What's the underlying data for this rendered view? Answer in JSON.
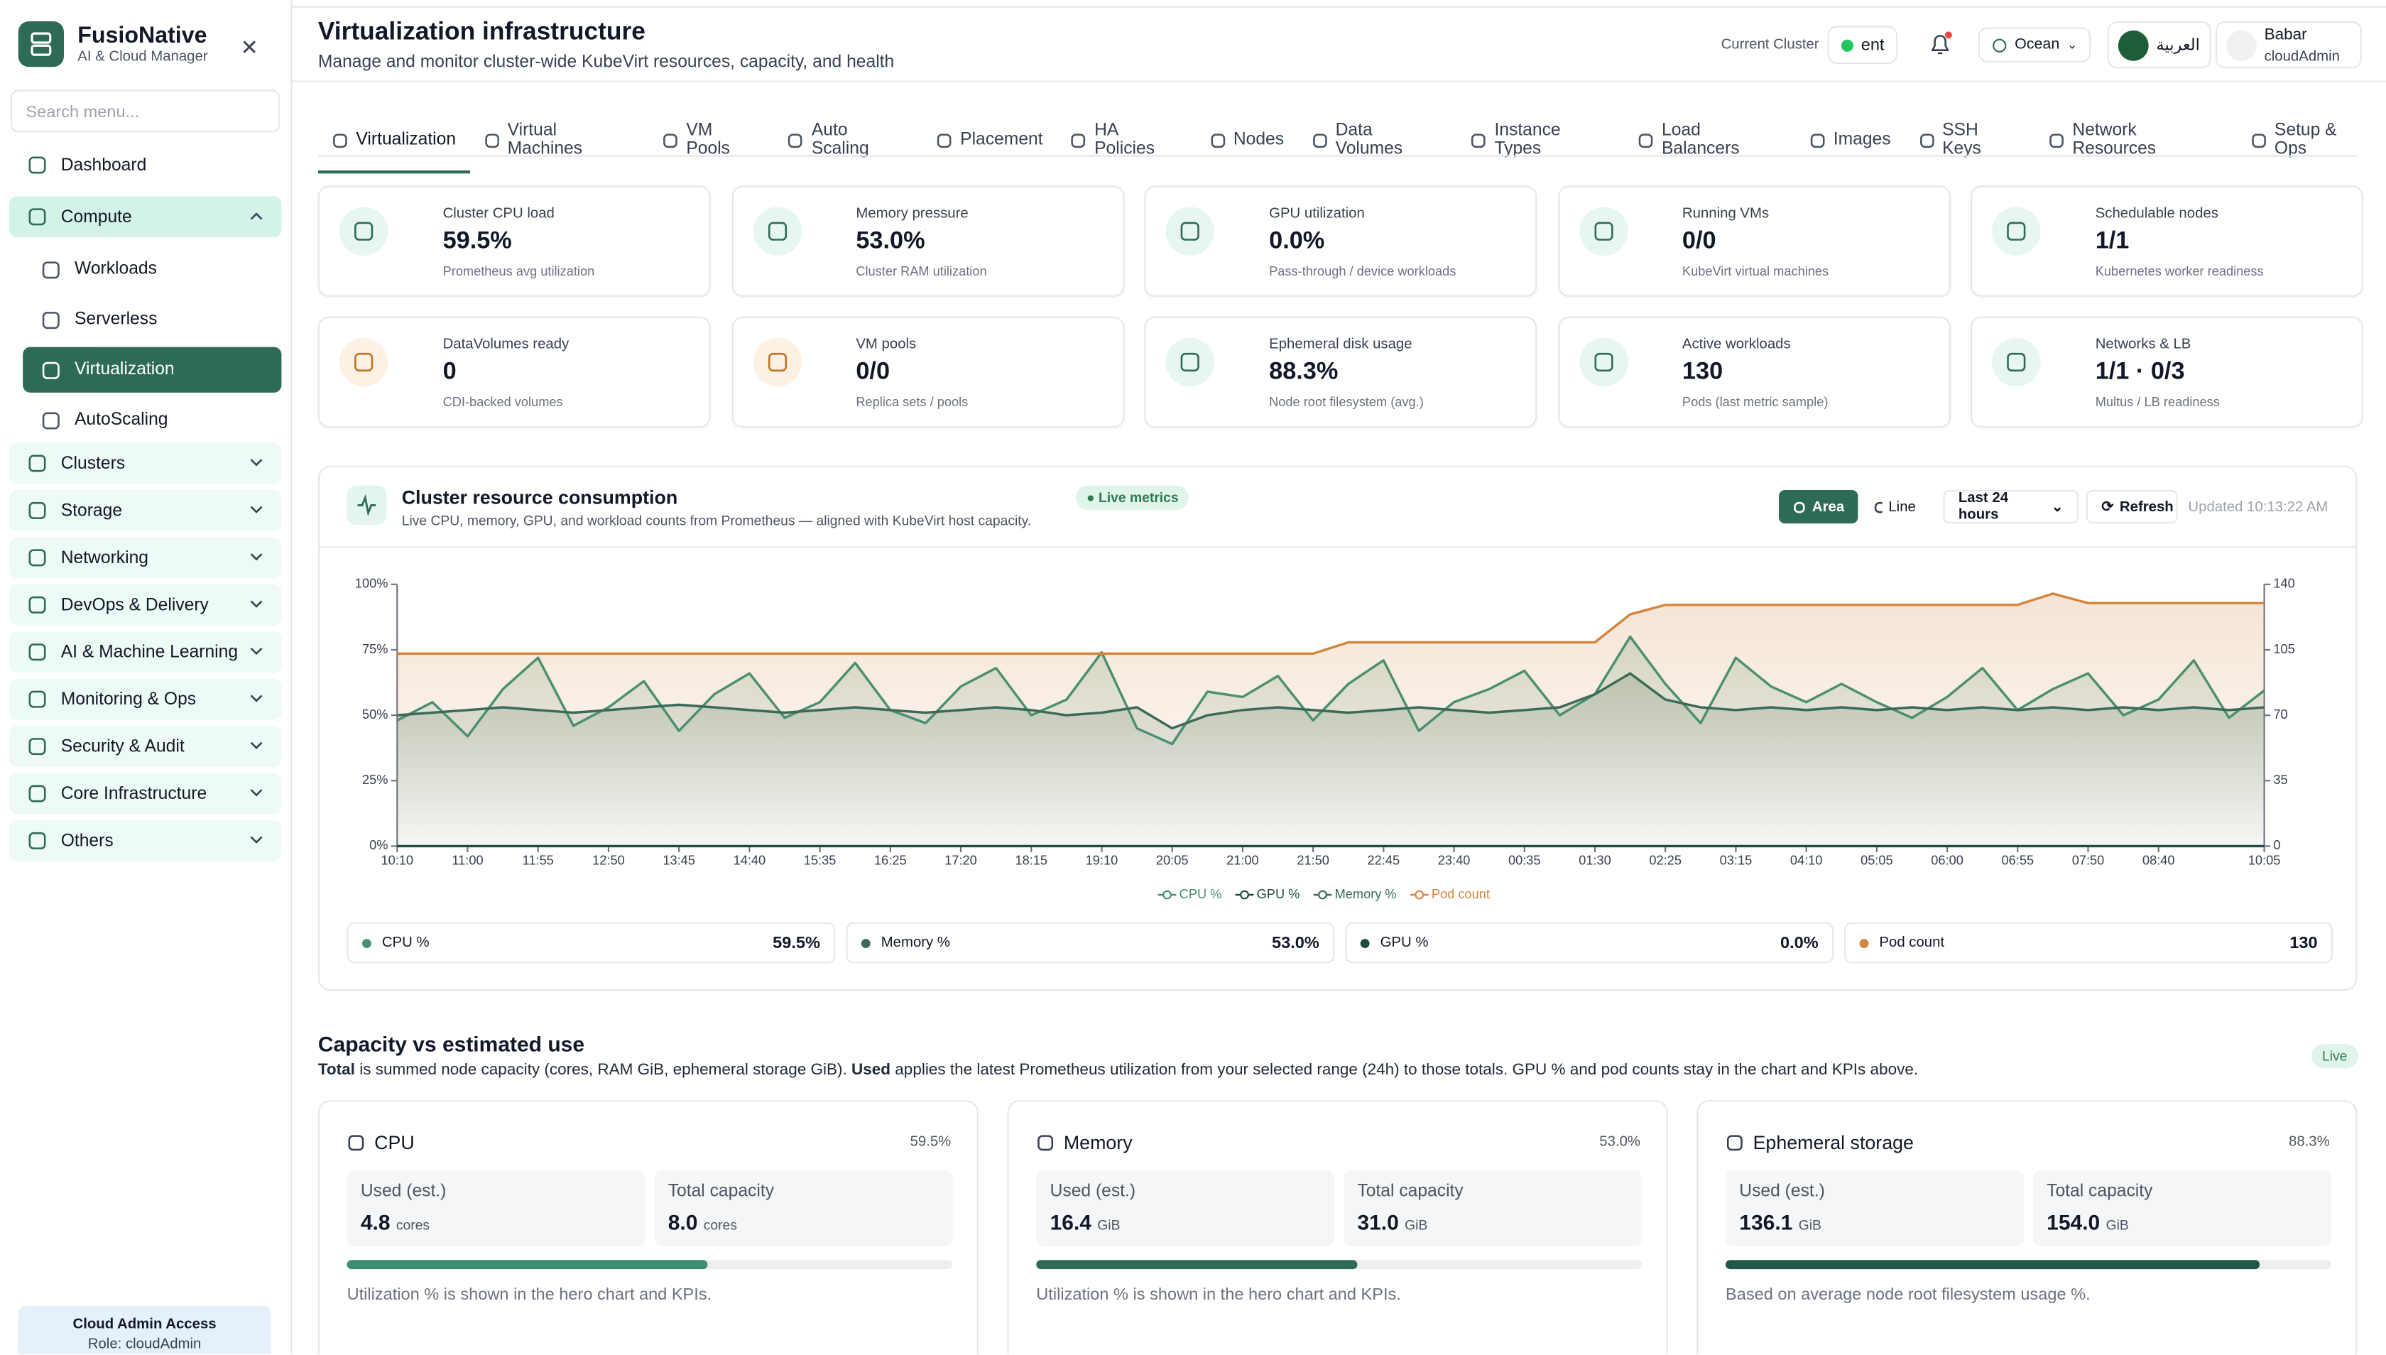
{
  "sidebar": {
    "brand": "FusioNative",
    "tagline": "AI & Cloud Manager",
    "search_placeholder": "Search menu...",
    "nav": [
      {
        "label": "Dashboard"
      },
      {
        "label": "Compute",
        "open": true,
        "children": [
          {
            "label": "Workloads"
          },
          {
            "label": "Serverless"
          },
          {
            "label": "Virtualization",
            "active": true
          },
          {
            "label": "AutoScaling"
          }
        ]
      },
      {
        "label": "Clusters"
      },
      {
        "label": "Storage"
      },
      {
        "label": "Networking"
      },
      {
        "label": "DevOps & Delivery"
      },
      {
        "label": "AI & Machine Learning"
      },
      {
        "label": "Monitoring & Ops"
      },
      {
        "label": "Security & Audit"
      },
      {
        "label": "Core Infrastructure"
      },
      {
        "label": "Others"
      }
    ],
    "footer": {
      "title": "Cloud Admin Access",
      "role": "Role: cloudAdmin"
    }
  },
  "header": {
    "title": "Virtualization infrastructure",
    "subtitle": "Manage and monitor cluster-wide KubeVirt resources, capacity, and health",
    "cluster_label": "Current Cluster",
    "cluster": "ent",
    "theme": "Ocean",
    "language": "العربية",
    "user_name": "Babar",
    "user_role": "cloudAdmin"
  },
  "tabs": [
    {
      "label": "Virtualization",
      "active": true
    },
    {
      "label": "Virtual Machines"
    },
    {
      "label": "VM Pools"
    },
    {
      "label": "Auto Scaling"
    },
    {
      "label": "Placement"
    },
    {
      "label": "HA Policies"
    },
    {
      "label": "Nodes"
    },
    {
      "label": "Data Volumes"
    },
    {
      "label": "Instance Types"
    },
    {
      "label": "Load Balancers"
    },
    {
      "label": "Images"
    },
    {
      "label": "SSH Keys"
    },
    {
      "label": "Network Resources"
    },
    {
      "label": "Setup & Ops"
    }
  ],
  "kpis": [
    {
      "label": "Cluster CPU load",
      "value": "59.5%",
      "note": "Prometheus avg utilization"
    },
    {
      "label": "Memory pressure",
      "value": "53.0%",
      "note": "Cluster RAM utilization"
    },
    {
      "label": "GPU utilization",
      "value": "0.0%",
      "note": "Pass-through / device workloads"
    },
    {
      "label": "Running VMs",
      "value": "0/0",
      "note": "KubeVirt virtual machines"
    },
    {
      "label": "Schedulable nodes",
      "value": "1/1",
      "note": "Kubernetes worker readiness"
    },
    {
      "label": "DataVolumes ready",
      "value": "0",
      "note": "CDI-backed volumes"
    },
    {
      "label": "VM pools",
      "value": "0/0",
      "note": "Replica sets / pools"
    },
    {
      "label": "Ephemeral disk usage",
      "value": "88.3%",
      "note": "Node root filesystem (avg.)"
    },
    {
      "label": "Active workloads",
      "value": "130",
      "note": "Pods (last metric sample)"
    },
    {
      "label": "Networks & LB",
      "value": "1/1 · 0/3",
      "note": "Multus / LB readiness"
    }
  ],
  "chart_panel": {
    "badge": "Live metrics",
    "modes": [
      {
        "label": "Area",
        "active": true
      },
      {
        "label": "Line"
      }
    ],
    "range": "Last 24 hours",
    "refresh": "Refresh",
    "updated": "Updated 10:13:22 AM",
    "stats": [
      {
        "name": "CPU %",
        "value": "59.5%"
      },
      {
        "name": "Memory %",
        "value": "53.0%"
      },
      {
        "name": "GPU %",
        "value": "0.0%"
      },
      {
        "name": "Pod count",
        "value": "130"
      }
    ]
  },
  "chart_data": {
    "type": "line",
    "title": "Cluster resource consumption",
    "subtitle": "Live CPU, memory, GPU, and workload counts from Prometheus — aligned with KubeVirt host capacity.",
    "area": true,
    "grid": false,
    "categories": [
      "10:10",
      null,
      "11:00",
      null,
      "11:55",
      null,
      "12:50",
      null,
      "13:45",
      null,
      "14:40",
      null,
      "15:35",
      null,
      "16:25",
      null,
      "17:20",
      null,
      "18:15",
      null,
      "19:10",
      null,
      "20:05",
      null,
      "21:00",
      null,
      "21:50",
      null,
      "22:45",
      null,
      "23:40",
      null,
      "00:35",
      null,
      "01:30",
      null,
      "02:25",
      null,
      "03:15",
      null,
      "04:10",
      null,
      "05:05",
      null,
      "06:00",
      null,
      "06:55",
      null,
      "07:50",
      null,
      "08:40",
      null,
      null,
      "10:05"
    ],
    "ylim": [
      0,
      100
    ],
    "yticks": [
      {
        "value": 0,
        "label": "0%"
      },
      {
        "value": 25,
        "label": "25%"
      },
      {
        "value": 50,
        "label": "50%"
      },
      {
        "value": 75,
        "label": "75%"
      },
      {
        "value": 100,
        "label": "100%"
      }
    ],
    "y2lim": [
      0,
      140
    ],
    "y2ticks": [
      0,
      35,
      70,
      105,
      140
    ],
    "series": [
      {
        "name": "CPU %",
        "color": "#4a8f6f",
        "values": [
          48,
          55,
          42,
          60,
          72,
          46,
          53,
          63,
          44,
          58,
          66,
          49,
          55,
          70,
          52,
          47,
          61,
          68,
          50,
          56,
          74,
          45,
          39,
          59,
          57,
          65,
          48,
          62,
          71,
          44,
          55,
          60,
          67,
          50,
          58,
          80,
          62,
          47,
          72,
          61,
          55,
          62,
          55,
          49,
          57,
          68,
          52,
          60,
          66,
          50,
          56,
          71,
          49,
          59.5
        ]
      },
      {
        "name": "GPU %",
        "color": "#1f4d3d",
        "values": [
          0,
          0,
          0,
          0,
          0,
          0,
          0,
          0,
          0,
          0,
          0,
          0,
          0,
          0,
          0,
          0,
          0,
          0,
          0,
          0,
          0,
          0,
          0,
          0,
          0,
          0,
          0,
          0,
          0,
          0,
          0,
          0,
          0,
          0,
          0,
          0,
          0,
          0,
          0,
          0,
          0,
          0,
          0,
          0,
          0,
          0,
          0,
          0,
          0,
          0,
          0,
          0,
          0,
          0
        ]
      },
      {
        "name": "Memory %",
        "color": "#3a6b56",
        "values": [
          50,
          51,
          52,
          53,
          52,
          51,
          52,
          53,
          54,
          53,
          52,
          51,
          52,
          53,
          52,
          51,
          52,
          53,
          52,
          50,
          51,
          53,
          45,
          50,
          52,
          53,
          52,
          51,
          52,
          53,
          52,
          51,
          52,
          53,
          58,
          66,
          56,
          53,
          52,
          53,
          52,
          53,
          52,
          53,
          52,
          53,
          52,
          53,
          52,
          53,
          52,
          53,
          52,
          53
        ]
      },
      {
        "name": "Pod count",
        "color": "#d4843e",
        "axis": "y2",
        "values": [
          103,
          103,
          103,
          103,
          103,
          103,
          103,
          103,
          103,
          103,
          103,
          103,
          103,
          103,
          103,
          103,
          103,
          103,
          103,
          103,
          103,
          103,
          103,
          103,
          103,
          103,
          103,
          109,
          109,
          109,
          109,
          109,
          109,
          109,
          109,
          124,
          129,
          129,
          129,
          129,
          129,
          129,
          129,
          129,
          129,
          129,
          129,
          135,
          130,
          130,
          130,
          130,
          130,
          130
        ]
      }
    ]
  },
  "capacity": {
    "title": "Capacity vs estimated use",
    "description": [
      {
        "text": "Total",
        "bold": true
      },
      {
        "text": " is summed node capacity (cores, RAM GiB, ephemeral storage GiB). "
      },
      {
        "text": "Used",
        "bold": true
      },
      {
        "text": " applies the latest Prometheus utilization from your selected range (24h) to those totals. GPU % and pod counts stay in the chart and KPIs above."
      }
    ],
    "badge": "Live",
    "cards": [
      {
        "title": "CPU",
        "percent": "59.5%",
        "used_label": "Used (est.)",
        "used": "4.8",
        "used_unit": "cores",
        "total_label": "Total capacity",
        "total": "8.0",
        "total_unit": "cores",
        "note": "Utilization % is shown in the hero chart and KPIs."
      },
      {
        "title": "Memory",
        "percent": "53.0%",
        "used_label": "Used (est.)",
        "used": "16.4",
        "used_unit": "GiB",
        "total_label": "Total capacity",
        "total": "31.0",
        "total_unit": "GiB",
        "note": "Utilization % is shown in the hero chart and KPIs."
      },
      {
        "title": "Ephemeral storage",
        "percent": "88.3%",
        "used_label": "Used (est.)",
        "used": "136.1",
        "used_unit": "GiB",
        "total_label": "Total capacity",
        "total": "154.0",
        "total_unit": "GiB",
        "note": "Based on average node root filesystem usage %."
      }
    ]
  }
}
